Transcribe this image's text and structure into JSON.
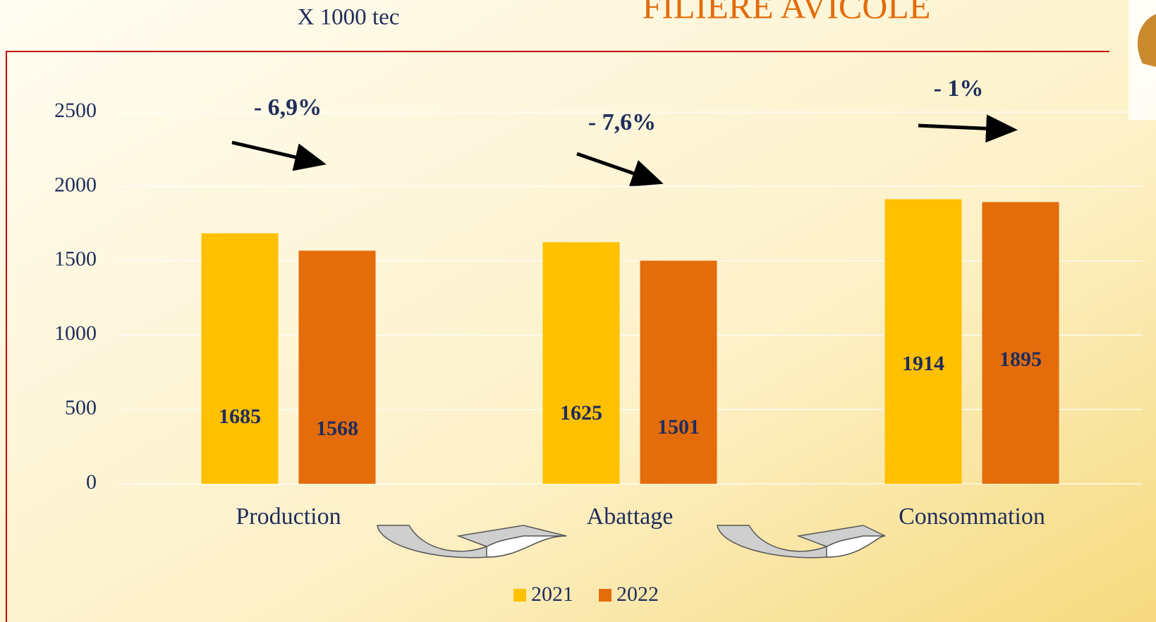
{
  "chart_data": {
    "type": "bar",
    "title": "FILIERE AVICOLE",
    "subtitle": "X 1000 tec",
    "categories": [
      "Production",
      "Abattage",
      "Consommation"
    ],
    "series": [
      {
        "name": "2021",
        "color": "#FFC000",
        "values": [
          1685,
          1625,
          1914
        ]
      },
      {
        "name": "2022",
        "color": "#E46C0A",
        "values": [
          1568,
          1501,
          1895
        ]
      }
    ],
    "annotations": [
      "- 6,9%",
      "- 7,6%",
      "- 1%"
    ],
    "ylim": [
      0,
      2500
    ],
    "yticks": [
      0,
      500,
      1000,
      1500,
      2000,
      2500
    ],
    "grid": true
  }
}
